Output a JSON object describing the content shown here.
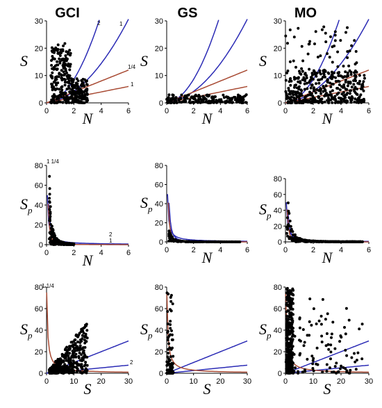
{
  "column_titles": [
    "GCI",
    "GS",
    "MO"
  ],
  "colors": {
    "points": "#000000",
    "blue_curves": "#2b2bb5",
    "red_curves": "#a84a33"
  },
  "chart_data": [
    {
      "id": "gci-s-n",
      "type": "scatter",
      "column": "GCI",
      "xlabel": "N",
      "ylabel": "S",
      "xlim": [
        0,
        6
      ],
      "ylim": [
        0,
        30
      ],
      "xticks": [
        0,
        2,
        4,
        6
      ],
      "yticks": [
        0,
        10,
        20,
        30
      ],
      "curve_labels": [
        "2",
        "1",
        "1/4",
        "1"
      ]
    },
    {
      "id": "gs-s-n",
      "type": "scatter",
      "column": "GS",
      "xlabel": "N",
      "ylabel": "S",
      "xlim": [
        0,
        6
      ],
      "ylim": [
        0,
        30
      ],
      "xticks": [
        0,
        2,
        4,
        6
      ],
      "yticks": [
        0,
        10,
        20,
        30
      ],
      "curve_labels": []
    },
    {
      "id": "mo-s-n",
      "type": "scatter",
      "column": "MO",
      "xlabel": "N",
      "ylabel": "S",
      "xlim": [
        0,
        6
      ],
      "ylim": [
        0,
        30
      ],
      "xticks": [
        0,
        2,
        4,
        6
      ],
      "yticks": [
        0,
        10,
        20,
        30
      ],
      "curve_labels": []
    },
    {
      "id": "gci-sp-n",
      "type": "scatter",
      "column": "GCI",
      "xlabel": "N",
      "ylabel": "S",
      "ylabel_sub": "p",
      "xlim": [
        0,
        6
      ],
      "ylim": [
        0,
        80
      ],
      "xticks": [
        0,
        2,
        4,
        6
      ],
      "yticks": [
        0,
        20,
        40,
        60,
        80
      ],
      "curve_labels": [
        "1 1/4",
        "2",
        "1"
      ]
    },
    {
      "id": "gs-sp-n",
      "type": "scatter",
      "column": "GS",
      "xlabel": "N",
      "ylabel": "S",
      "ylabel_sub": "p",
      "xlim": [
        0,
        6
      ],
      "ylim": [
        0,
        80
      ],
      "xticks": [
        0,
        2,
        4,
        6
      ],
      "yticks": [
        0,
        20,
        40,
        60,
        80
      ],
      "curve_labels": []
    },
    {
      "id": "mo-sp-n",
      "type": "scatter",
      "column": "MO",
      "xlabel": "N",
      "ylabel": "S",
      "ylabel_sub": "p",
      "xlim": [
        0,
        6
      ],
      "ylim": [
        0,
        80
      ],
      "xticks": [
        0,
        2,
        4,
        6
      ],
      "yticks": [
        0,
        20,
        40,
        60,
        80
      ],
      "curve_labels": []
    },
    {
      "id": "gci-sp-s",
      "type": "scatter",
      "column": "GCI",
      "xlabel": "S",
      "ylabel": "S",
      "ylabel_sub": "p",
      "xlim": [
        0,
        30
      ],
      "ylim": [
        0,
        80
      ],
      "xticks": [
        0,
        10,
        20,
        30
      ],
      "yticks": [
        0,
        20,
        40,
        60,
        80
      ],
      "curve_labels": [
        "1 1/4",
        "2"
      ]
    },
    {
      "id": "gs-sp-s",
      "type": "scatter",
      "column": "GS",
      "xlabel": "S",
      "ylabel": "S",
      "ylabel_sub": "p",
      "xlim": [
        0,
        30
      ],
      "ylim": [
        0,
        80
      ],
      "xticks": [
        0,
        10,
        20,
        30
      ],
      "yticks": [
        0,
        20,
        40,
        60,
        80
      ],
      "curve_labels": []
    },
    {
      "id": "mo-sp-s",
      "type": "scatter",
      "column": "MO",
      "xlabel": "S",
      "ylabel": "S",
      "ylabel_sub": "p",
      "xlim": [
        0,
        30
      ],
      "ylim": [
        0,
        80
      ],
      "xticks": [
        0,
        10,
        20,
        30
      ],
      "yticks": [
        0,
        20,
        40,
        60,
        80
      ],
      "curve_labels": []
    }
  ]
}
